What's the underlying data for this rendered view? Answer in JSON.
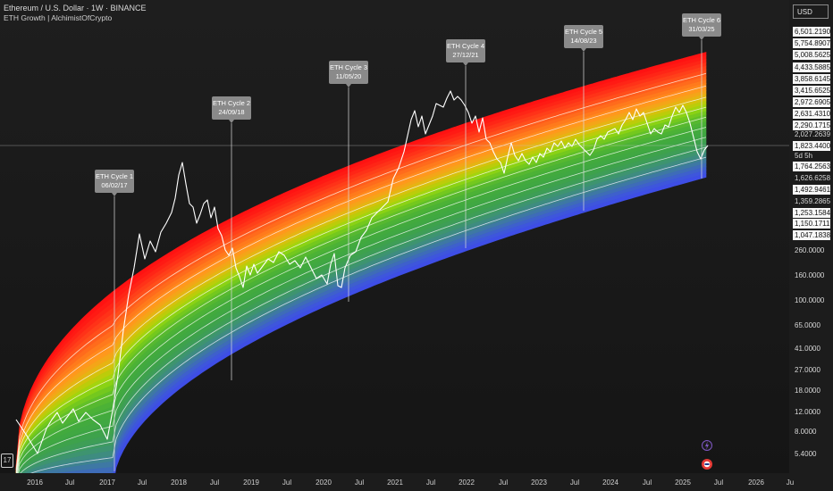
{
  "header": {
    "title": "Ethereum / U.S. Dollar · 1W · BINANCE",
    "indicator": "ETH Growth | AlchimistOfCrypto"
  },
  "currency": "USD",
  "price_axis": {
    "labels": [
      {
        "text": "6,501.2190",
        "style": "boxed"
      },
      {
        "text": "5,754.8907",
        "style": "boxed"
      },
      {
        "text": "5,008.5625",
        "style": "boxed"
      },
      {
        "text": "4,433.5885",
        "style": "boxed"
      },
      {
        "text": "3,858.6145",
        "style": "boxed"
      },
      {
        "text": "3,415.6525",
        "style": "boxed"
      },
      {
        "text": "2,972.6905",
        "style": "boxed"
      },
      {
        "text": "2,631.4310",
        "style": "boxed"
      },
      {
        "text": "2,290.1715",
        "style": "boxed"
      },
      {
        "text": "2,027.2639",
        "style": "plain"
      },
      {
        "text": "1,823.4400",
        "style": "boxed"
      },
      {
        "text": "5d 5h",
        "style": "plain"
      },
      {
        "text": "1,764.2563",
        "style": "boxed"
      },
      {
        "text": "1,626.6258",
        "style": "plain"
      },
      {
        "text": "1,492.9461",
        "style": "boxed"
      },
      {
        "text": "1,359.2865",
        "style": "plain"
      },
      {
        "text": "1,253.1584",
        "style": "boxed"
      },
      {
        "text": "1,150.1711",
        "style": "boxed"
      },
      {
        "text": "1,047.1838",
        "style": "boxed"
      },
      {
        "text": "260.0000",
        "style": "plain"
      },
      {
        "text": "160.0000",
        "style": "plain"
      },
      {
        "text": "100.0000",
        "style": "plain"
      },
      {
        "text": "65.0000",
        "style": "plain"
      },
      {
        "text": "41.0000",
        "style": "plain"
      },
      {
        "text": "27.0000",
        "style": "plain"
      },
      {
        "text": "18.0000",
        "style": "plain"
      },
      {
        "text": "12.0000",
        "style": "plain"
      },
      {
        "text": "8.0000",
        "style": "plain"
      },
      {
        "text": "5.4000",
        "style": "plain"
      }
    ]
  },
  "time_axis": {
    "labels": [
      "2016",
      "Jul",
      "2017",
      "Jul",
      "2018",
      "Jul",
      "2019",
      "Jul",
      "2020",
      "Jul",
      "2021",
      "Jul",
      "2022",
      "Jul",
      "2023",
      "Jul",
      "2024",
      "Jul",
      "2025",
      "Jul",
      "2026",
      "Ju"
    ]
  },
  "cycles": [
    {
      "name": "ETH Cycle 1",
      "date": "06/02/17"
    },
    {
      "name": "ETH Cycle 2",
      "date": "24/09/18"
    },
    {
      "name": "ETH Cycle 3",
      "date": "11/05/20"
    },
    {
      "name": "ETH Cycle 4",
      "date": "27/12/21"
    },
    {
      "name": "ETH Cycle 5",
      "date": "14/08/23"
    },
    {
      "name": "ETH Cycle 6",
      "date": "31/03/25"
    }
  ],
  "colors": {
    "band_top": "#ff1a1a",
    "band_orange": "#ff8c1a",
    "band_yellow": "#c8d400",
    "band_green": "#3fb24a",
    "band_blue": "#3a52e6",
    "price_line": "#ffffff"
  },
  "tv_logo": "17"
}
